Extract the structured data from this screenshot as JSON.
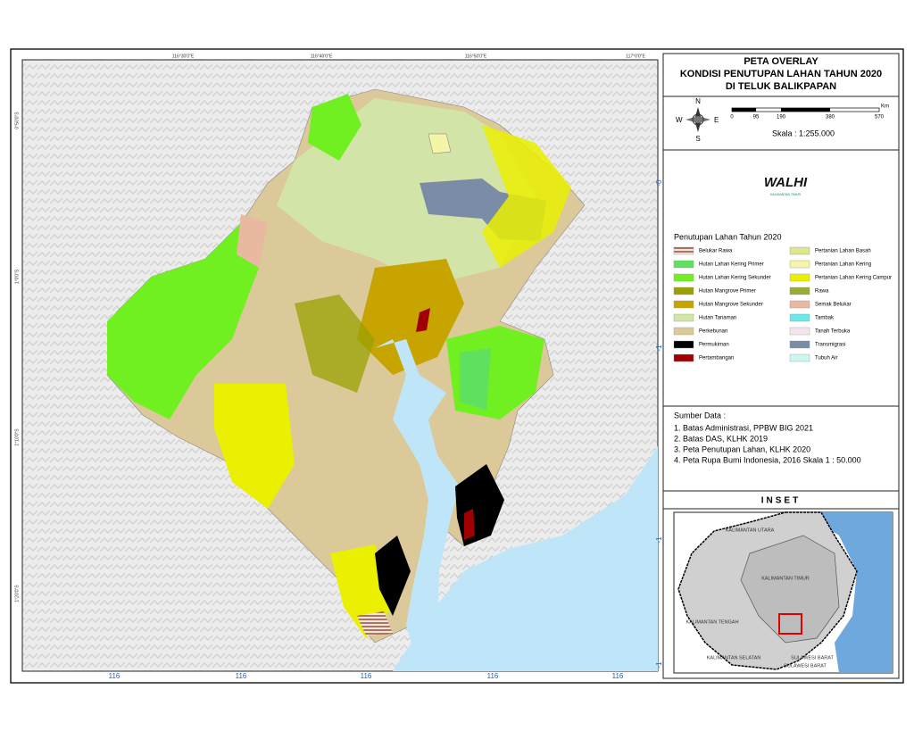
{
  "header": {
    "title_lines": [
      "PETA OVERLAY",
      "KONDISI PENUTUPAN LAHAN TAHUN 2020",
      "DI TELUK BALIKPAPAN"
    ]
  },
  "compass": {
    "n": "N",
    "s": "S",
    "e": "E",
    "w": "W"
  },
  "scale_bar": {
    "labels": [
      "0",
      "95",
      "190",
      "380",
      "570"
    ],
    "unit": "Km",
    "scale_text": "Skala : 1:255.000"
  },
  "logo": {
    "name": "WALHI",
    "subtitle": "KALIMANTAN TIMUR"
  },
  "legend": {
    "title": "Penutupan Lahan Tahun 2020",
    "items": [
      {
        "label": "Belukar Rawa",
        "color": "#c9a68c",
        "hatch": true
      },
      {
        "label": "Hutan Lahan Kering Primer",
        "color": "#5fe05f"
      },
      {
        "label": "Hutan Lahan Kering Sekunder",
        "color": "#70f020"
      },
      {
        "label": "Hutan Mangrove Primer",
        "color": "#9aa000"
      },
      {
        "label": "Hutan Mangrove Sekunder",
        "color": "#c8a400"
      },
      {
        "label": "Hutan Tanaman",
        "color": "#d3e4a8"
      },
      {
        "label": "Perkebunan",
        "color": "#dcc99a"
      },
      {
        "label": "Permukiman",
        "color": "#000000"
      },
      {
        "label": "Pertambangan",
        "color": "#a00000"
      },
      {
        "label": "Pertanian Lahan Basah",
        "color": "#dfe68c"
      },
      {
        "label": "Pertanian Lahan Kering",
        "color": "#f5f5a8"
      },
      {
        "label": "Pertanian Lahan Kering Campur",
        "color": "#eaf000"
      },
      {
        "label": "Rawa",
        "color": "#9bab35"
      },
      {
        "label": "Semak Belukar",
        "color": "#e8b9a0"
      },
      {
        "label": "Tambak",
        "color": "#6ce8e8"
      },
      {
        "label": "Tanah Terbuka",
        "color": "#f4e4ee"
      },
      {
        "label": "Transmigrasi",
        "color": "#7b8da6"
      },
      {
        "label": "Tubuh Air",
        "color": "#cdf6f0"
      }
    ]
  },
  "sources": {
    "title": "Sumber Data :",
    "lines": [
      "1. Batas Administrasi, PPBW BIG 2021",
      "2. Batas DAS, KLHK 2019",
      "3. Peta Penutupan Lahan, KLHK 2020",
      "4. Peta Rupa Bumi Indonesia, 2016 Skala 1 : 50.000"
    ]
  },
  "inset": {
    "title": "INSET",
    "labels": [
      "KALIMANTAN UTARA",
      "KALIMANTAN TIMUR",
      "KALIMANTAN TENGAH",
      "KALIMANTAN SELATAN",
      "SULAWESI BARAT",
      "SULAWESI BARAT"
    ]
  },
  "grid_labels": {
    "top": [
      "116°30'0\"E",
      "116°40'0\"E",
      "116°50'0\"E",
      "117°0'0\"E"
    ],
    "left": [
      "0°50'0\"S",
      "1°0'0\"S",
      "1°10'0\"S",
      "1°20'0\"S"
    ],
    "bottom": [
      "116",
      "116",
      "116",
      "116",
      "116"
    ],
    "right": [
      "-0",
      "-1",
      "-1",
      "-1"
    ]
  }
}
